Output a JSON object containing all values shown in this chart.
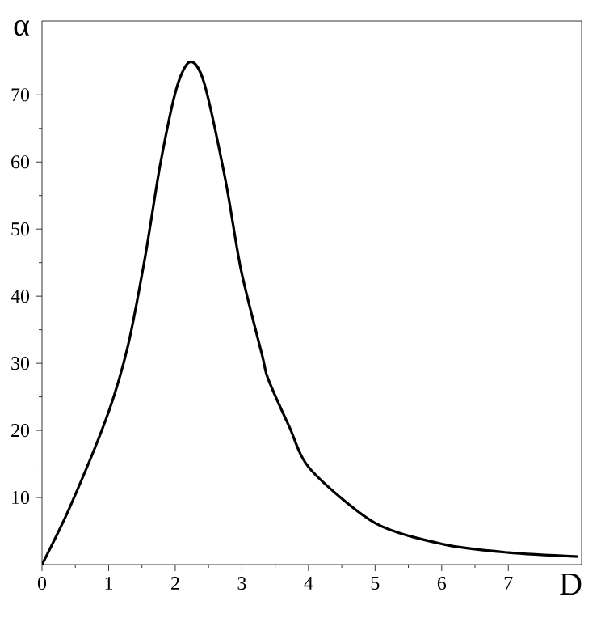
{
  "chart_data": {
    "type": "line",
    "xlabel": "D",
    "ylabel": "α",
    "x": [
      0,
      0.42,
      0.98,
      1.29,
      1.54,
      1.78,
      2.02,
      2.22,
      2.43,
      2.75,
      2.99,
      3.31,
      3.39,
      3.71,
      4.03,
      5.0,
      6.04,
      7.0,
      8.05
    ],
    "series": [
      {
        "color": "#000000",
        "values": [
          0,
          8.6,
          22.2,
          32.6,
          45.4,
          59.9,
          71,
          74.9,
          71.9,
          57.5,
          43.8,
          31,
          27.8,
          20.6,
          14.2,
          6.2,
          3.0,
          1.8,
          1.2
        ]
      }
    ],
    "xlim": [
      0,
      8.1
    ],
    "ylim": [
      0,
      81
    ],
    "xticks": [
      0,
      1,
      2,
      3,
      4,
      5,
      6,
      7
    ],
    "yticks": [
      10,
      20,
      30,
      40,
      50,
      60,
      70
    ],
    "grid": false,
    "marker": "none",
    "line_style": "solid"
  }
}
